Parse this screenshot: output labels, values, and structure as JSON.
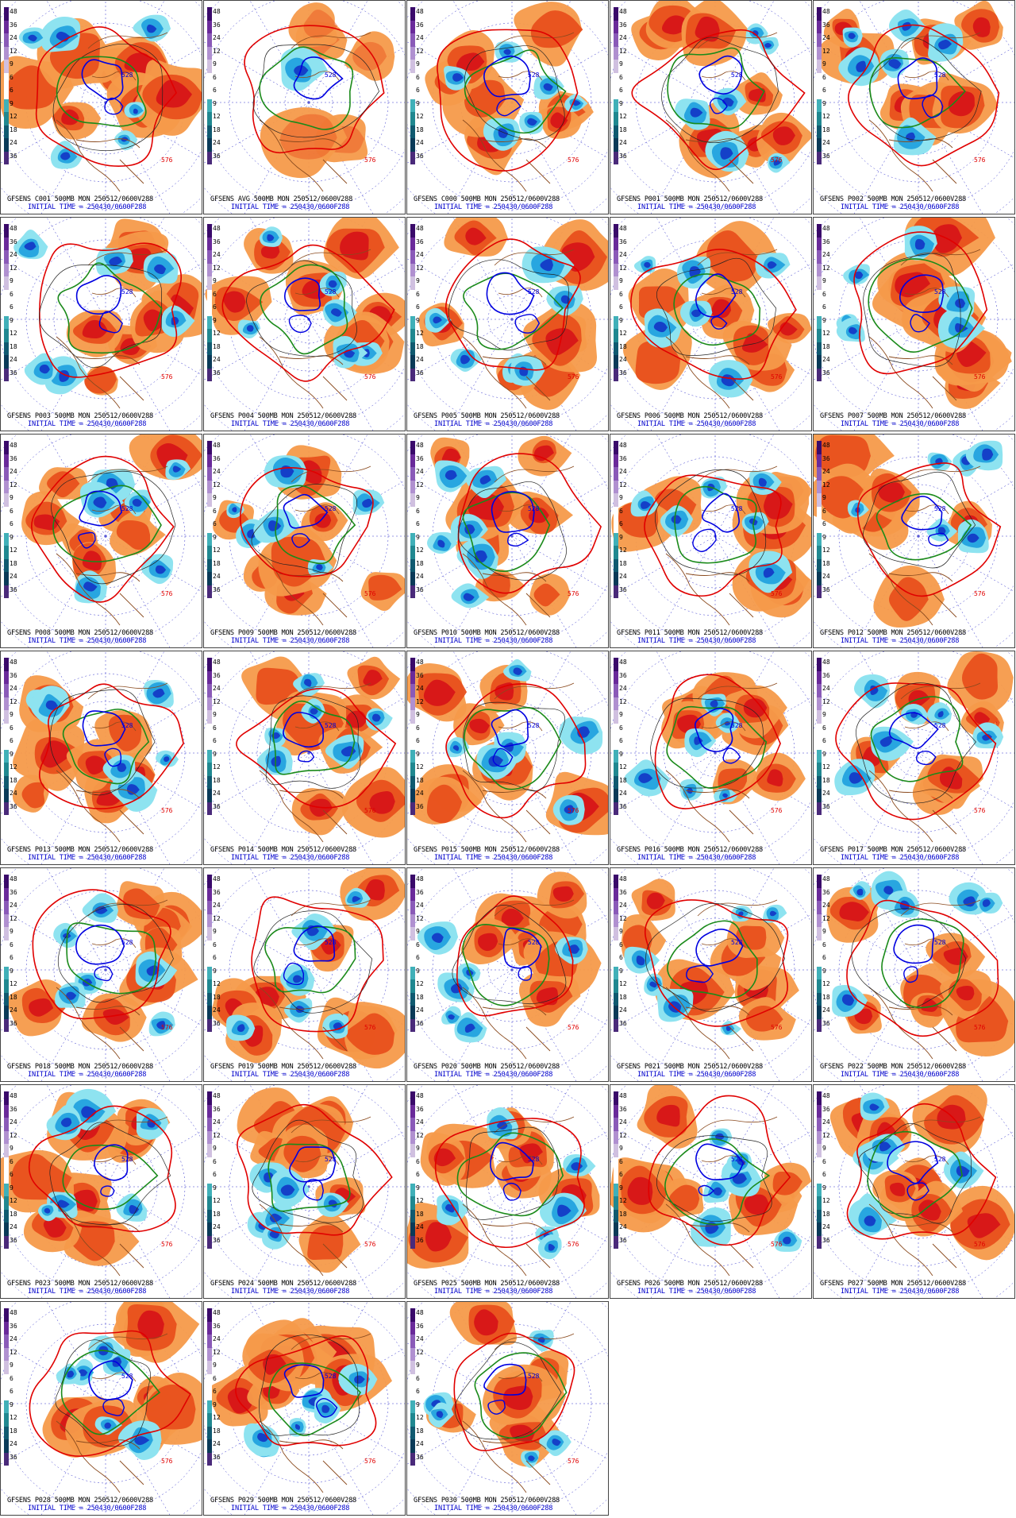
{
  "figure": {
    "color_scale_ticks": [
      "48",
      "36",
      "24",
      "12",
      "9",
      "6",
      "6",
      "9",
      "12",
      "18",
      "24",
      "36"
    ],
    "contour_labels": [
      "576",
      "528"
    ],
    "colors": {
      "positive_strong": "#d81818",
      "positive": "#e8501c",
      "positive_light": "#f59a4a",
      "negative_light": "#8ee3f0",
      "negative": "#28a6e0",
      "negative_strong": "#1440c8",
      "contour_576": "#e00000",
      "contour_546": "#1a8a1a",
      "contour_528": "#0000e0",
      "coastlines": "#8a4a1e",
      "grid_lines": "#3333cc"
    },
    "initial_time_line": "INITIAL TIME = 250430/0600F288"
  },
  "panels": [
    {
      "id": "C001",
      "caption": "GFSENS C001 500MB MON 250512/0600V288"
    },
    {
      "id": "AVG",
      "caption": "GFSENS AVG 500MB MON 250512/0600V288"
    },
    {
      "id": "C000",
      "caption": "GFSENS C000 500MB MON 250512/0600V288"
    },
    {
      "id": "P001",
      "caption": "GFSENS P001 500MB MON 250512/0600V288"
    },
    {
      "id": "P002",
      "caption": "GFSENS P002 500MB MON 250512/0600V288"
    },
    {
      "id": "P003",
      "caption": "GFSENS P003 500MB MON 250512/0600V288"
    },
    {
      "id": "P004",
      "caption": "GFSENS P004 500MB MON 250512/0600V288"
    },
    {
      "id": "P005",
      "caption": "GFSENS P005 500MB MON 250512/0600V288"
    },
    {
      "id": "P006",
      "caption": "GFSENS P006 500MB MON 250512/0600V288"
    },
    {
      "id": "P007",
      "caption": "GFSENS P007 500MB MON 250512/0600V288"
    },
    {
      "id": "P008",
      "caption": "GFSENS P008 500MB MON 250512/0600V288"
    },
    {
      "id": "P009",
      "caption": "GFSENS P009 500MB MON 250512/0600V288"
    },
    {
      "id": "P010",
      "caption": "GFSENS P010 500MB MON 250512/0600V288"
    },
    {
      "id": "P011",
      "caption": "GFSENS P011 500MB MON 250512/0600V288"
    },
    {
      "id": "P012",
      "caption": "GFSENS P012 500MB MON 250512/0600V288"
    },
    {
      "id": "P013",
      "caption": "GFSENS P013 500MB MON 250512/0600V288"
    },
    {
      "id": "P014",
      "caption": "GFSENS P014 500MB MON 250512/0600V288"
    },
    {
      "id": "P015",
      "caption": "GFSENS P015 500MB MON 250512/0600V288"
    },
    {
      "id": "P016",
      "caption": "GFSENS P016 500MB MON 250512/0600V288"
    },
    {
      "id": "P017",
      "caption": "GFSENS P017 500MB MON 250512/0600V288"
    },
    {
      "id": "P018",
      "caption": "GFSENS P018 500MB MON 250512/0600V288"
    },
    {
      "id": "P019",
      "caption": "GFSENS P019 500MB MON 250512/0600V288"
    },
    {
      "id": "P020",
      "caption": "GFSENS P020 500MB MON 250512/0600V288"
    },
    {
      "id": "P021",
      "caption": "GFSENS P021 500MB MON 250512/0600V288"
    },
    {
      "id": "P022",
      "caption": "GFSENS P022 500MB MON 250512/0600V288"
    },
    {
      "id": "P023",
      "caption": "GFSENS P023 500MB MON 250512/0600V288"
    },
    {
      "id": "P024",
      "caption": "GFSENS P024 500MB MON 250512/0600V288"
    },
    {
      "id": "P025",
      "caption": "GFSENS P025 500MB MON 250512/0600V288"
    },
    {
      "id": "P026",
      "caption": "GFSENS P026 500MB MON 250512/0600V288"
    },
    {
      "id": "P027",
      "caption": "GFSENS P027 500MB MON 250512/0600V288"
    },
    {
      "id": "P028",
      "caption": "GFSENS P028 500MB MON 250512/0600V288"
    },
    {
      "id": "P029",
      "caption": "GFSENS P029 500MB MON 250512/0600V288"
    },
    {
      "id": "P030",
      "caption": "GFSENS P030 500MB MON 250512/0600V288"
    }
  ]
}
